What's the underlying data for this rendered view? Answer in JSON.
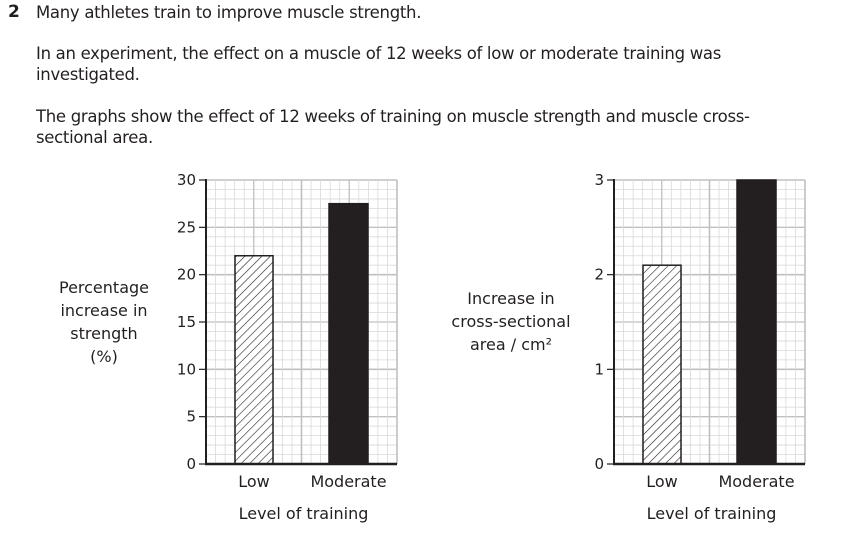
{
  "question": {
    "number": "2",
    "intro": "Many athletes train to improve muscle strength.",
    "paragraph2": "In an experiment, the effect on a muscle of 12 weeks of low or moderate training was investigated.",
    "paragraph3": "The graphs show the effect of 12 weeks of training on muscle strength and muscle cross-sectional area."
  },
  "chart_data": [
    {
      "type": "bar",
      "title": "",
      "categories": [
        "Low",
        "Moderate"
      ],
      "values": [
        22,
        27.5
      ],
      "bar_styles": [
        "hatched",
        "solid"
      ],
      "xlabel": "Level of training",
      "ylabel_lines": [
        "Percentage",
        "increase in",
        "strength",
        "(%)"
      ],
      "ylim": [
        0,
        30
      ],
      "yticks": [
        0,
        5,
        10,
        15,
        20,
        25,
        30
      ],
      "ytick_labels": [
        "0",
        "5",
        "10",
        "15",
        "20",
        "25",
        "30"
      ],
      "minor_step": 1,
      "grid": true,
      "colors": {
        "solid": "#231f20",
        "hatch": "#231f20",
        "grid_minor": "#d9d9db",
        "grid_major": "#bfc0c2"
      }
    },
    {
      "type": "bar",
      "title": "",
      "categories": [
        "Low",
        "Moderate"
      ],
      "values": [
        2.1,
        3.0
      ],
      "bar_styles": [
        "hatched",
        "solid"
      ],
      "xlabel": "Level of training",
      "ylabel_lines": [
        "Increase in",
        "cross-sectional",
        "area / cm²"
      ],
      "ylim": [
        0,
        3
      ],
      "yticks": [
        0,
        1,
        2,
        3
      ],
      "ytick_labels": [
        "0",
        "1",
        "2",
        "3"
      ],
      "minor_step": 0.1,
      "grid": true,
      "colors": {
        "solid": "#231f20",
        "hatch": "#231f20",
        "grid_minor": "#d9d9db",
        "grid_major": "#bfc0c2"
      }
    }
  ]
}
